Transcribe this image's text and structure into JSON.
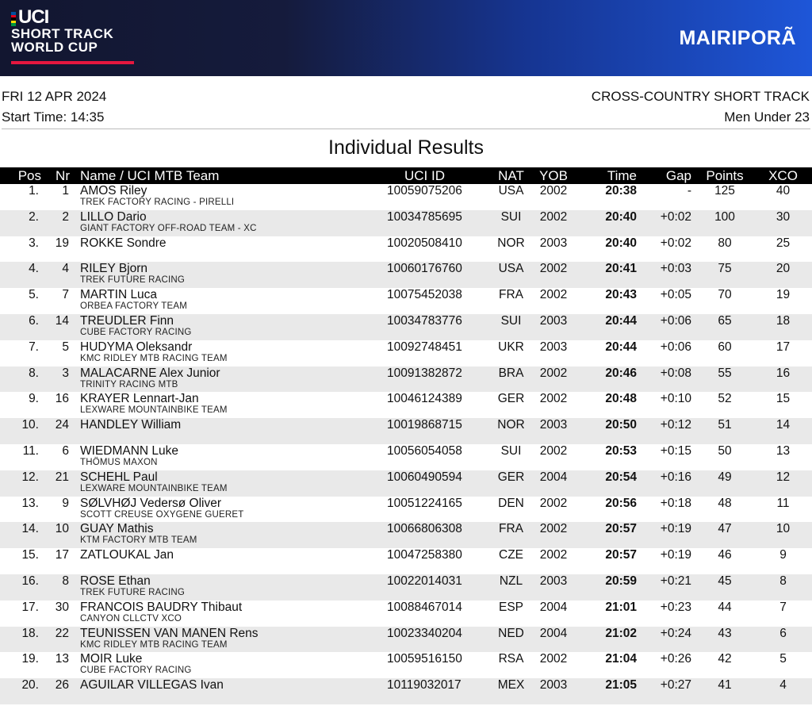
{
  "banner": {
    "uci": "UCI",
    "line1": "SHORT TRACK",
    "line2": "WORLD CUP",
    "venue": "MAIRIPORÃ",
    "rainbow_colors": [
      "#0050a0",
      "#e2001a",
      "#000000",
      "#ffd800",
      "#009640"
    ],
    "accent_color": "#e5173f"
  },
  "event": {
    "date": "FRI 12 APR 2024",
    "start_time": "Start Time: 14:35",
    "discipline": "CROSS-COUNTRY SHORT TRACK",
    "category": "Men Under 23"
  },
  "title": "Individual Results",
  "columns": {
    "pos": "Pos",
    "nr": "Nr",
    "name": "Name / UCI MTB Team",
    "uci_id": "UCI ID",
    "nat": "NAT",
    "yob": "YOB",
    "time": "Time",
    "gap": "Gap",
    "points": "Points",
    "xco": "XCO"
  },
  "results": [
    {
      "pos": "1.",
      "nr": "1",
      "name": "AMOS Riley",
      "team": "TREK FACTORY RACING - PIRELLI",
      "uci_id": "10059075206",
      "nat": "USA",
      "yob": "2002",
      "time": "20:38",
      "gap": "-",
      "points": "125",
      "xco": "40"
    },
    {
      "pos": "2.",
      "nr": "2",
      "name": "LILLO Dario",
      "team": "GIANT FACTORY OFF-ROAD TEAM - XC",
      "uci_id": "10034785695",
      "nat": "SUI",
      "yob": "2002",
      "time": "20:40",
      "gap": "+0:02",
      "points": "100",
      "xco": "30"
    },
    {
      "pos": "3.",
      "nr": "19",
      "name": "ROKKE Sondre",
      "team": "",
      "uci_id": "10020508410",
      "nat": "NOR",
      "yob": "2003",
      "time": "20:40",
      "gap": "+0:02",
      "points": "80",
      "xco": "25"
    },
    {
      "pos": "4.",
      "nr": "4",
      "name": "RILEY Bjorn",
      "team": "TREK FUTURE RACING",
      "uci_id": "10060176760",
      "nat": "USA",
      "yob": "2002",
      "time": "20:41",
      "gap": "+0:03",
      "points": "75",
      "xco": "20"
    },
    {
      "pos": "5.",
      "nr": "7",
      "name": "MARTIN Luca",
      "team": "ORBEA FACTORY TEAM",
      "uci_id": "10075452038",
      "nat": "FRA",
      "yob": "2002",
      "time": "20:43",
      "gap": "+0:05",
      "points": "70",
      "xco": "19"
    },
    {
      "pos": "6.",
      "nr": "14",
      "name": "TREUDLER Finn",
      "team": "CUBE FACTORY RACING",
      "uci_id": "10034783776",
      "nat": "SUI",
      "yob": "2003",
      "time": "20:44",
      "gap": "+0:06",
      "points": "65",
      "xco": "18"
    },
    {
      "pos": "7.",
      "nr": "5",
      "name": "HUDYMA Oleksandr",
      "team": "KMC RIDLEY MTB RACING TEAM",
      "uci_id": "10092748451",
      "nat": "UKR",
      "yob": "2003",
      "time": "20:44",
      "gap": "+0:06",
      "points": "60",
      "xco": "17"
    },
    {
      "pos": "8.",
      "nr": "3",
      "name": "MALACARNE Alex Junior",
      "team": "TRINITY RACING MTB",
      "uci_id": "10091382872",
      "nat": "BRA",
      "yob": "2002",
      "time": "20:46",
      "gap": "+0:08",
      "points": "55",
      "xco": "16"
    },
    {
      "pos": "9.",
      "nr": "16",
      "name": "KRAYER Lennart-Jan",
      "team": "LEXWARE MOUNTAINBIKE TEAM",
      "uci_id": "10046124389",
      "nat": "GER",
      "yob": "2002",
      "time": "20:48",
      "gap": "+0:10",
      "points": "52",
      "xco": "15"
    },
    {
      "pos": "10.",
      "nr": "24",
      "name": "HANDLEY William",
      "team": "",
      "uci_id": "10019868715",
      "nat": "NOR",
      "yob": "2003",
      "time": "20:50",
      "gap": "+0:12",
      "points": "51",
      "xco": "14"
    },
    {
      "pos": "11.",
      "nr": "6",
      "name": "WIEDMANN Luke",
      "team": "THÖMUS MAXON",
      "uci_id": "10056054058",
      "nat": "SUI",
      "yob": "2002",
      "time": "20:53",
      "gap": "+0:15",
      "points": "50",
      "xco": "13"
    },
    {
      "pos": "12.",
      "nr": "21",
      "name": "SCHEHL Paul",
      "team": "LEXWARE MOUNTAINBIKE TEAM",
      "uci_id": "10060490594",
      "nat": "GER",
      "yob": "2004",
      "time": "20:54",
      "gap": "+0:16",
      "points": "49",
      "xco": "12"
    },
    {
      "pos": "13.",
      "nr": "9",
      "name": "SØLVHØJ Vedersø Oliver",
      "team": "SCOTT CREUSE OXYGENE GUERET",
      "uci_id": "10051224165",
      "nat": "DEN",
      "yob": "2002",
      "time": "20:56",
      "gap": "+0:18",
      "points": "48",
      "xco": "11"
    },
    {
      "pos": "14.",
      "nr": "10",
      "name": "GUAY Mathis",
      "team": "KTM FACTORY MTB TEAM",
      "uci_id": "10066806308",
      "nat": "FRA",
      "yob": "2002",
      "time": "20:57",
      "gap": "+0:19",
      "points": "47",
      "xco": "10"
    },
    {
      "pos": "15.",
      "nr": "17",
      "name": "ZATLOUKAL Jan",
      "team": "",
      "uci_id": "10047258380",
      "nat": "CZE",
      "yob": "2002",
      "time": "20:57",
      "gap": "+0:19",
      "points": "46",
      "xco": "9"
    },
    {
      "pos": "16.",
      "nr": "8",
      "name": "ROSE Ethan",
      "team": "TREK FUTURE RACING",
      "uci_id": "10022014031",
      "nat": "NZL",
      "yob": "2003",
      "time": "20:59",
      "gap": "+0:21",
      "points": "45",
      "xco": "8"
    },
    {
      "pos": "17.",
      "nr": "30",
      "name": "FRANCOIS BAUDRY Thibaut",
      "team": "CANYON CLLCTV XCO",
      "uci_id": "10088467014",
      "nat": "ESP",
      "yob": "2004",
      "time": "21:01",
      "gap": "+0:23",
      "points": "44",
      "xco": "7"
    },
    {
      "pos": "18.",
      "nr": "22",
      "name": "TEUNISSEN VAN MANEN Rens",
      "team": "KMC RIDLEY MTB RACING TEAM",
      "uci_id": "10023340204",
      "nat": "NED",
      "yob": "2004",
      "time": "21:02",
      "gap": "+0:24",
      "points": "43",
      "xco": "6"
    },
    {
      "pos": "19.",
      "nr": "13",
      "name": "MOIR Luke",
      "team": "CUBE FACTORY RACING",
      "uci_id": "10059516150",
      "nat": "RSA",
      "yob": "2002",
      "time": "21:04",
      "gap": "+0:26",
      "points": "42",
      "xco": "5"
    },
    {
      "pos": "20.",
      "nr": "26",
      "name": "AGUILAR VILLEGAS Ivan",
      "team": "",
      "uci_id": "10119032017",
      "nat": "MEX",
      "yob": "2003",
      "time": "21:05",
      "gap": "+0:27",
      "points": "41",
      "xco": "4"
    }
  ]
}
